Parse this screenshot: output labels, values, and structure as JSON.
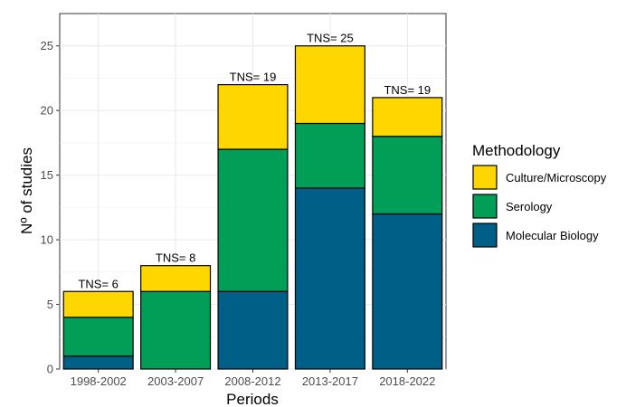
{
  "chart_data": {
    "type": "bar",
    "stacked": true,
    "title": "",
    "xlabel": "Periods",
    "ylabel": "Nº of studies",
    "ylim": [
      0,
      27.5
    ],
    "yticks": [
      0,
      5,
      10,
      15,
      20,
      25
    ],
    "grid": true,
    "legend_position": "right",
    "categories": [
      "1998-2002",
      "2003-2007",
      "2008-2012",
      "2013-2017",
      "2018-2022"
    ],
    "series": [
      {
        "name": "Molecular Biology",
        "color": "#005f87",
        "values": [
          1,
          0,
          6,
          14,
          12
        ]
      },
      {
        "name": "Serology",
        "color": "#009e57",
        "values": [
          3,
          6,
          11,
          5,
          6
        ]
      },
      {
        "name": "Culture/Microscopy",
        "color": "#ffd700",
        "values": [
          2,
          2,
          5,
          6,
          3
        ]
      }
    ],
    "annotations": [
      "TNS= 6",
      "TNS= 8",
      "TNS= 19",
      "TNS= 25",
      "TNS= 19"
    ],
    "legend_title": "Methodology",
    "legend_order": [
      "Culture/Microscopy",
      "Serology",
      "Molecular Biology"
    ]
  }
}
